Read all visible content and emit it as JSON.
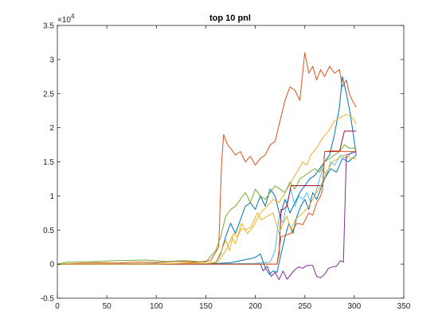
{
  "chart_data": {
    "type": "line",
    "title": "top 10 pnl",
    "xlabel": "",
    "ylabel": "",
    "xlim": [
      0,
      350
    ],
    "ylim": [
      -5000,
      35000
    ],
    "x_ticks": [
      0,
      50,
      100,
      150,
      200,
      250,
      300,
      350
    ],
    "y_ticks": [
      -5000,
      0,
      5000,
      10000,
      15000,
      20000,
      25000,
      30000,
      35000
    ],
    "y_tick_labels": [
      "-0.5",
      "0",
      "0.5",
      "1",
      "1.5",
      "2",
      "2.5",
      "3",
      "3.5"
    ],
    "y_exponent_label": "×10",
    "y_exponent_power": "4",
    "grid": false,
    "legend": "none",
    "series": [
      {
        "color": "#D95319",
        "points": [
          [
            0,
            0
          ],
          [
            20,
            100
          ],
          [
            40,
            200
          ],
          [
            60,
            150
          ],
          [
            80,
            300
          ],
          [
            100,
            250
          ],
          [
            120,
            400
          ],
          [
            140,
            300
          ],
          [
            155,
            500
          ],
          [
            163,
            2500
          ],
          [
            166,
            15000
          ],
          [
            168,
            19000
          ],
          [
            172,
            17500
          ],
          [
            176,
            16800
          ],
          [
            180,
            16000
          ],
          [
            185,
            16500
          ],
          [
            190,
            15000
          ],
          [
            195,
            15800
          ],
          [
            200,
            14500
          ],
          [
            205,
            15500
          ],
          [
            210,
            16000
          ],
          [
            215,
            17500
          ],
          [
            220,
            18000
          ],
          [
            225,
            21000
          ],
          [
            230,
            24000
          ],
          [
            235,
            26000
          ],
          [
            240,
            25500
          ],
          [
            245,
            24000
          ],
          [
            250,
            31000
          ],
          [
            254,
            28000
          ],
          [
            258,
            29000
          ],
          [
            262,
            27000
          ],
          [
            266,
            28500
          ],
          [
            270,
            27500
          ],
          [
            275,
            29000
          ],
          [
            280,
            28000
          ],
          [
            285,
            28500
          ],
          [
            288,
            26000
          ],
          [
            292,
            27000
          ],
          [
            295,
            25000
          ],
          [
            298,
            24000
          ],
          [
            302,
            23000
          ]
        ]
      },
      {
        "color": "#0072BD",
        "points": [
          [
            0,
            0
          ],
          [
            50,
            0
          ],
          [
            100,
            100
          ],
          [
            150,
            0
          ],
          [
            160,
            200
          ],
          [
            165,
            1500
          ],
          [
            170,
            4000
          ],
          [
            175,
            6000
          ],
          [
            180,
            4500
          ],
          [
            185,
            6500
          ],
          [
            190,
            8500
          ],
          [
            195,
            9000
          ],
          [
            200,
            8000
          ],
          [
            205,
            10000
          ],
          [
            210,
            8500
          ],
          [
            215,
            11000
          ],
          [
            220,
            10000
          ],
          [
            225,
            7000
          ],
          [
            230,
            9500
          ],
          [
            235,
            7500
          ],
          [
            240,
            9000
          ],
          [
            245,
            10500
          ],
          [
            250,
            11500
          ],
          [
            255,
            12500
          ],
          [
            260,
            13000
          ],
          [
            265,
            14000
          ],
          [
            270,
            15000
          ],
          [
            275,
            16000
          ],
          [
            280,
            19000
          ],
          [
            285,
            23000
          ],
          [
            288,
            27500
          ],
          [
            292,
            25000
          ],
          [
            296,
            22000
          ],
          [
            302,
            16000
          ]
        ]
      },
      {
        "color": "#EDB120",
        "points": [
          [
            0,
            0
          ],
          [
            60,
            50
          ],
          [
            120,
            80
          ],
          [
            150,
            0
          ],
          [
            162,
            300
          ],
          [
            168,
            1500
          ],
          [
            172,
            2500
          ],
          [
            176,
            4000
          ],
          [
            180,
            3000
          ],
          [
            186,
            6000
          ],
          [
            192,
            4500
          ],
          [
            198,
            5500
          ],
          [
            205,
            7500
          ],
          [
            212,
            8500
          ],
          [
            218,
            9500
          ],
          [
            224,
            9000
          ],
          [
            230,
            10500
          ],
          [
            236,
            12000
          ],
          [
            242,
            13500
          ],
          [
            248,
            15000
          ],
          [
            252,
            14500
          ],
          [
            256,
            16000
          ],
          [
            262,
            17000
          ],
          [
            268,
            18500
          ],
          [
            274,
            19500
          ],
          [
            280,
            21000
          ],
          [
            286,
            21500
          ],
          [
            292,
            22000
          ],
          [
            298,
            21500
          ],
          [
            302,
            20500
          ]
        ]
      },
      {
        "color": "#77AC30",
        "points": [
          [
            0,
            0
          ],
          [
            10,
            300
          ],
          [
            30,
            350
          ],
          [
            60,
            500
          ],
          [
            90,
            600
          ],
          [
            110,
            400
          ],
          [
            130,
            500
          ],
          [
            150,
            300
          ],
          [
            160,
            2000
          ],
          [
            165,
            4000
          ],
          [
            170,
            7000
          ],
          [
            175,
            8000
          ],
          [
            180,
            8500
          ],
          [
            185,
            9500
          ],
          [
            190,
            10500
          ],
          [
            195,
            9000
          ],
          [
            200,
            11000
          ],
          [
            205,
            10000
          ],
          [
            210,
            9500
          ],
          [
            215,
            10500
          ],
          [
            220,
            11500
          ],
          [
            225,
            11000
          ],
          [
            230,
            10500
          ],
          [
            235,
            12000
          ],
          [
            240,
            11000
          ],
          [
            245,
            12500
          ],
          [
            250,
            13000
          ],
          [
            255,
            13500
          ],
          [
            260,
            14000
          ],
          [
            265,
            13500
          ],
          [
            270,
            15000
          ],
          [
            275,
            15500
          ],
          [
            280,
            16000
          ],
          [
            285,
            16500
          ],
          [
            290,
            17500
          ],
          [
            295,
            17000
          ],
          [
            302,
            17000
          ]
        ]
      },
      {
        "color": "#4DBEEE",
        "points": [
          [
            0,
            0
          ],
          [
            100,
            50
          ],
          [
            150,
            0
          ],
          [
            200,
            100
          ],
          [
            215,
            300
          ],
          [
            220,
            2000
          ],
          [
            224,
            7000
          ],
          [
            228,
            6000
          ],
          [
            232,
            9000
          ],
          [
            236,
            11000
          ],
          [
            240,
            8500
          ],
          [
            244,
            10000
          ],
          [
            248,
            9500
          ],
          [
            252,
            10500
          ],
          [
            256,
            9000
          ],
          [
            260,
            10000
          ],
          [
            264,
            12000
          ],
          [
            268,
            14000
          ],
          [
            272,
            13000
          ],
          [
            276,
            15000
          ],
          [
            280,
            14500
          ],
          [
            286,
            16000
          ],
          [
            292,
            15500
          ],
          [
            298,
            16500
          ],
          [
            302,
            16500
          ]
        ]
      },
      {
        "color": "#A2142F",
        "points": [
          [
            0,
            0
          ],
          [
            100,
            0
          ],
          [
            150,
            0
          ],
          [
            200,
            0
          ],
          [
            222,
            0
          ],
          [
            224,
            1500
          ],
          [
            226,
            8000
          ],
          [
            228,
            8000
          ],
          [
            232,
            8500
          ],
          [
            236,
            11500
          ],
          [
            240,
            11500
          ],
          [
            244,
            11500
          ],
          [
            248,
            11500
          ],
          [
            252,
            11500
          ],
          [
            256,
            11500
          ],
          [
            260,
            11500
          ],
          [
            264,
            11500
          ],
          [
            268,
            11500
          ],
          [
            270,
            16500
          ],
          [
            274,
            16500
          ],
          [
            280,
            16500
          ],
          [
            285,
            16500
          ],
          [
            290,
            19500
          ],
          [
            295,
            19500
          ],
          [
            302,
            19500
          ]
        ]
      },
      {
        "color": "#7E2F8E",
        "points": [
          [
            0,
            0
          ],
          [
            150,
            0
          ],
          [
            205,
            0
          ],
          [
            208,
            -1000
          ],
          [
            212,
            -300
          ],
          [
            216,
            -1800
          ],
          [
            220,
            -1200
          ],
          [
            224,
            -2300
          ],
          [
            228,
            -1000
          ],
          [
            232,
            -2200
          ],
          [
            236,
            -1500
          ],
          [
            240,
            -800
          ],
          [
            244,
            -400
          ],
          [
            248,
            -600
          ],
          [
            252,
            -200
          ],
          [
            258,
            -200
          ],
          [
            262,
            -1800
          ],
          [
            266,
            -2000
          ],
          [
            270,
            -1500
          ],
          [
            274,
            -600
          ],
          [
            278,
            -400
          ],
          [
            282,
            -300
          ],
          [
            286,
            500
          ],
          [
            289,
            300
          ],
          [
            292,
            16000
          ],
          [
            296,
            16200
          ],
          [
            302,
            16500
          ]
        ]
      },
      {
        "color": "#0072BD",
        "points": [
          [
            0,
            0
          ],
          [
            100,
            0
          ],
          [
            150,
            0
          ],
          [
            175,
            200
          ],
          [
            185,
            500
          ],
          [
            195,
            800
          ],
          [
            200,
            1000
          ],
          [
            205,
            1500
          ],
          [
            210,
            -500
          ],
          [
            214,
            -1500
          ],
          [
            218,
            -1000
          ],
          [
            222,
            -1200
          ],
          [
            226,
            1500
          ],
          [
            230,
            4000
          ],
          [
            234,
            6000
          ],
          [
            238,
            4500
          ],
          [
            242,
            7000
          ],
          [
            246,
            8500
          ],
          [
            250,
            9500
          ],
          [
            254,
            8000
          ],
          [
            258,
            10500
          ],
          [
            262,
            9500
          ],
          [
            266,
            11000
          ],
          [
            270,
            12500
          ],
          [
            276,
            14000
          ],
          [
            282,
            13500
          ],
          [
            288,
            15500
          ],
          [
            294,
            15000
          ],
          [
            302,
            16000
          ]
        ]
      },
      {
        "color": "#D95319",
        "points": [
          [
            0,
            0
          ],
          [
            100,
            0
          ],
          [
            200,
            0
          ],
          [
            222,
            0
          ],
          [
            226,
            4000
          ],
          [
            230,
            4200
          ],
          [
            236,
            4500
          ],
          [
            242,
            6000
          ],
          [
            248,
            5800
          ],
          [
            254,
            7500
          ],
          [
            258,
            7200
          ],
          [
            262,
            9000
          ],
          [
            266,
            10000
          ],
          [
            268,
            11000
          ],
          [
            270,
            16500
          ],
          [
            276,
            16600
          ],
          [
            282,
            16600
          ],
          [
            290,
            16500
          ],
          [
            302,
            16500
          ]
        ]
      },
      {
        "color": "#EDB120",
        "points": [
          [
            0,
            0
          ],
          [
            50,
            0
          ],
          [
            100,
            0
          ],
          [
            140,
            200
          ],
          [
            150,
            100
          ],
          [
            160,
            300
          ],
          [
            166,
            2000
          ],
          [
            170,
            3500
          ],
          [
            174,
            2000
          ],
          [
            178,
            4500
          ],
          [
            182,
            4000
          ],
          [
            186,
            5200
          ],
          [
            190,
            5000
          ],
          [
            196,
            5500
          ],
          [
            202,
            7500
          ],
          [
            206,
            6500
          ],
          [
            212,
            7000
          ],
          [
            218,
            7500
          ],
          [
            224,
            4500
          ],
          [
            228,
            6000
          ],
          [
            232,
            7000
          ],
          [
            236,
            5000
          ],
          [
            240,
            6500
          ],
          [
            244,
            7000
          ],
          [
            248,
            7500
          ],
          [
            254,
            8500
          ],
          [
            260,
            10000
          ],
          [
            266,
            11500
          ],
          [
            272,
            13500
          ],
          [
            278,
            15000
          ],
          [
            284,
            15500
          ],
          [
            290,
            16000
          ],
          [
            296,
            15500
          ],
          [
            302,
            15500
          ]
        ]
      }
    ]
  }
}
